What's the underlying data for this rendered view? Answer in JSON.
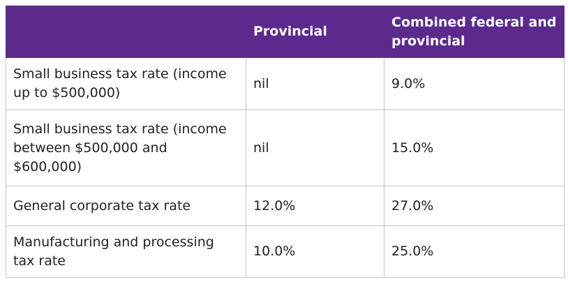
{
  "table": {
    "header": [
      "Provincial",
      "Combined federal and provincial"
    ],
    "rows": [
      [
        "Small business tax rate (income up to $500,000)",
        "nil",
        "9.0%"
      ],
      [
        "Small business tax rate (income between $500,000 and $600,000)",
        "nil",
        "15.0%"
      ],
      [
        "General corporate tax rate",
        "12.0%",
        "27.0%"
      ],
      [
        "Manufacturing and processing tax rate",
        "10.0%",
        "25.0%"
      ]
    ]
  }
}
